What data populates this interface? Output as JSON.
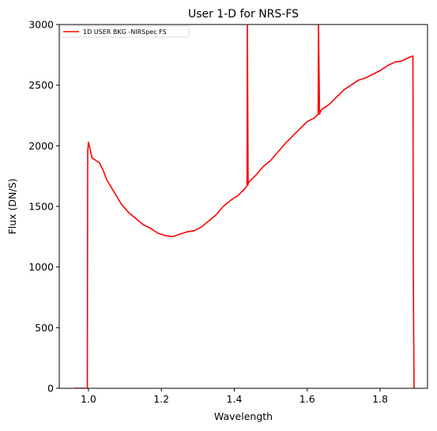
{
  "chart_data": {
    "type": "line",
    "title": "User 1-D for NRS-FS",
    "xlabel": "Wavelength",
    "ylabel": "Flux (DN/S)",
    "xlim": [
      0.92,
      1.93
    ],
    "ylim": [
      0,
      3000
    ],
    "xticks": [
      1.0,
      1.2,
      1.4,
      1.6,
      1.8
    ],
    "xtick_labels": [
      "1.0",
      "1.2",
      "1.4",
      "1.6",
      "1.8"
    ],
    "yticks": [
      0,
      500,
      1000,
      1500,
      2000,
      2500,
      3000
    ],
    "ytick_labels": [
      "0",
      "500",
      "1000",
      "1500",
      "2000",
      "2500",
      "3000"
    ],
    "legend_position": "top-left",
    "grid": false,
    "series": [
      {
        "name": "1D USER BKG -NIRSpec FS",
        "color": "#ff0000",
        "x": [
          0.96,
          0.997,
          0.998,
          1.0,
          1.01,
          1.02,
          1.03,
          1.04,
          1.05,
          1.07,
          1.09,
          1.11,
          1.13,
          1.15,
          1.17,
          1.19,
          1.21,
          1.23,
          1.25,
          1.27,
          1.29,
          1.31,
          1.33,
          1.35,
          1.37,
          1.39,
          1.41,
          1.43,
          1.435,
          1.436,
          1.438,
          1.44,
          1.46,
          1.48,
          1.5,
          1.52,
          1.54,
          1.56,
          1.58,
          1.6,
          1.62,
          1.63,
          1.631,
          1.634,
          1.636,
          1.64,
          1.66,
          1.68,
          1.7,
          1.72,
          1.74,
          1.76,
          1.78,
          1.8,
          1.82,
          1.84,
          1.86,
          1.88,
          1.89,
          1.891,
          1.893
        ],
        "y": [
          0,
          0,
          1950,
          2030,
          1900,
          1880,
          1860,
          1800,
          1720,
          1620,
          1520,
          1450,
          1400,
          1350,
          1320,
          1280,
          1260,
          1250,
          1270,
          1290,
          1300,
          1330,
          1380,
          1430,
          1500,
          1550,
          1590,
          1650,
          1670,
          3000,
          1680,
          1700,
          1760,
          1830,
          1880,
          1950,
          2020,
          2080,
          2140,
          2200,
          2230,
          2260,
          3000,
          2260,
          2280,
          2300,
          2340,
          2400,
          2460,
          2500,
          2540,
          2560,
          2590,
          2620,
          2660,
          2690,
          2700,
          2730,
          2740,
          1000,
          0
        ]
      }
    ]
  }
}
